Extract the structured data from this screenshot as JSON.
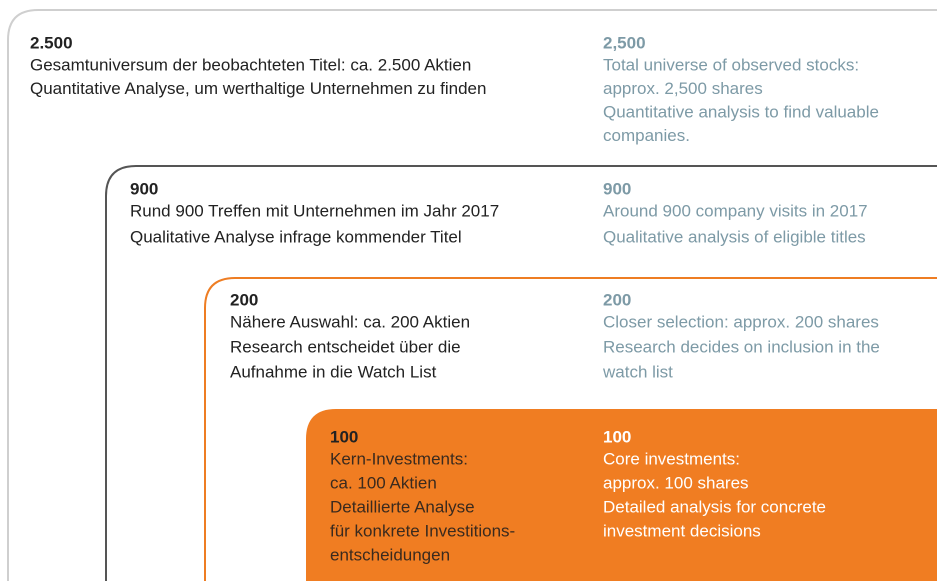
{
  "levels": [
    {
      "number_de": "2.500",
      "lines_de": [
        "Gesamtuniversum der beobachteten Titel: ca. 2.500 Aktien",
        "Quantitative Analyse, um werthaltige Unternehmen zu finden"
      ],
      "number_en": "2,500",
      "lines_en": [
        "Total universe of observed stocks:",
        "approx. 2,500 shares",
        "Quantitative analysis to find valuable",
        "companies."
      ]
    },
    {
      "number_de": "900",
      "lines_de": [
        "Rund 900 Treffen mit Unternehmen im Jahr 2017",
        "Qualitative Analyse infrage kommender Titel"
      ],
      "number_en": "900",
      "lines_en": [
        "Around 900 company visits in 2017",
        "Qualitative analysis of eligible titles"
      ]
    },
    {
      "number_de": "200",
      "lines_de": [
        "Nähere Auswahl: ca. 200 Aktien",
        "Research entscheidet über die",
        "Aufnahme in die Watch List"
      ],
      "number_en": "200",
      "lines_en": [
        "Closer selection: approx. 200 shares",
        "Research decides on inclusion in the",
        "watch list"
      ]
    },
    {
      "number_de": "100",
      "lines_de": [
        "Kern-Investments:",
        "ca. 100 Aktien",
        "Detaillierte Analyse",
        "für konkrete Investitions-",
        "entscheidungen"
      ],
      "number_en": "100",
      "lines_en": [
        "Core investments:",
        "approx. 100 shares",
        "Detailed analysis for concrete",
        "investment decisions"
      ]
    }
  ]
}
